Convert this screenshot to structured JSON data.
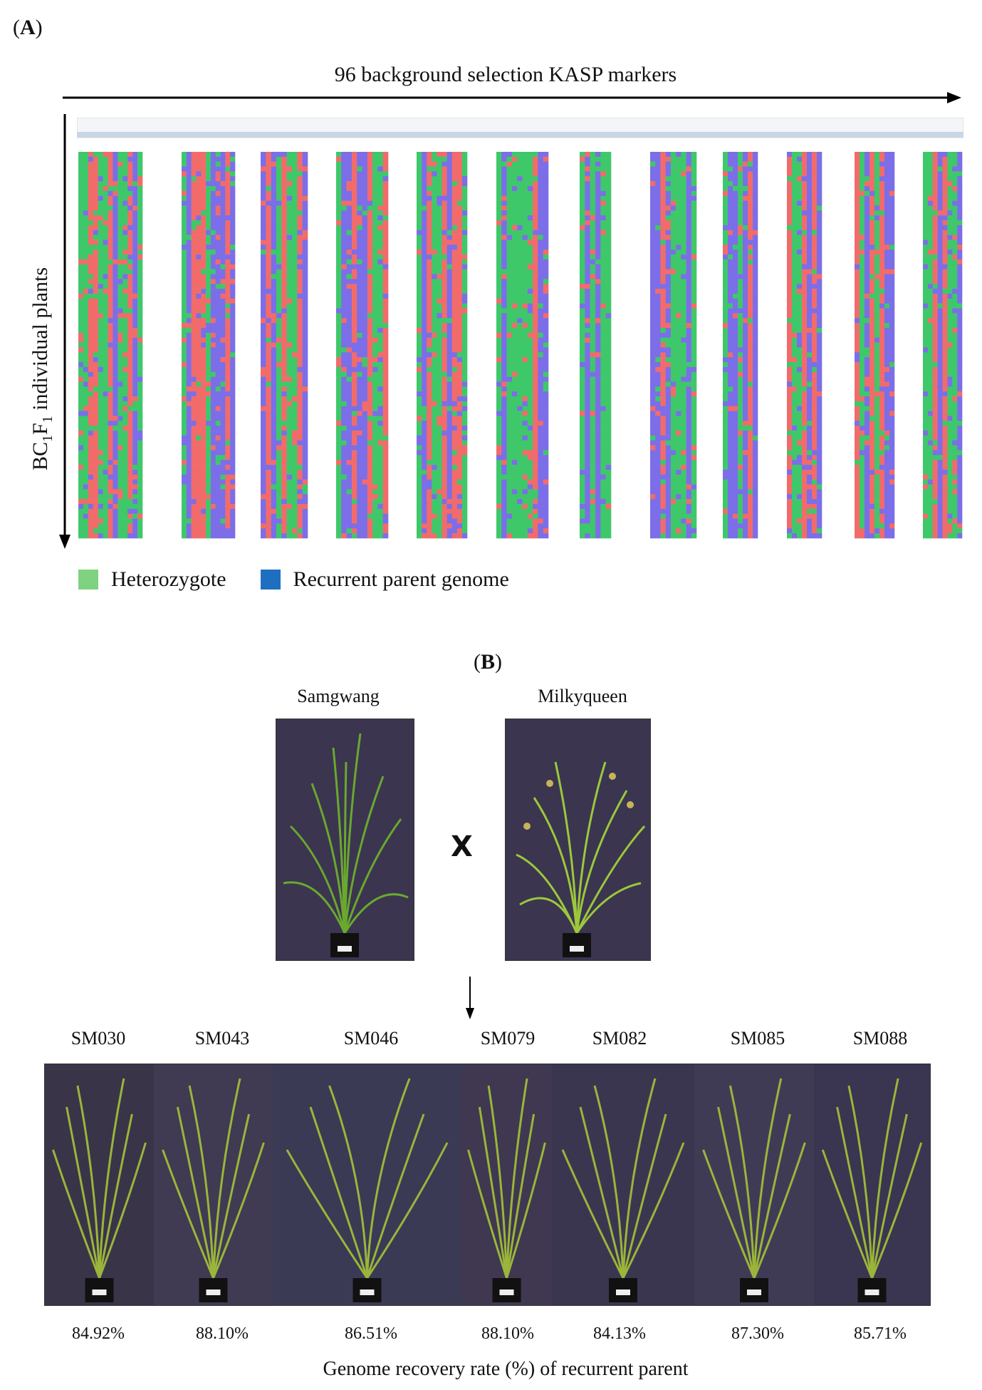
{
  "panel_a": {
    "label_open": "(",
    "label_letter": "A",
    "label_close": ")",
    "title": "96 background selection KASP markers",
    "ylabel_main": "BC",
    "ylabel_sub1": "1",
    "ylabel_mid": "F",
    "ylabel_sub2": "1",
    "ylabel_rest": " individual plants",
    "legend": [
      {
        "label": "Heterozygote",
        "color": "#7fd27f"
      },
      {
        "label": "Recurrent parent genome",
        "color": "#1f6fc0"
      }
    ],
    "colors": {
      "red": "#f26b6b",
      "green": "#3ec86a",
      "blue": "#7b6ee8"
    }
  },
  "panel_b": {
    "label_open": "(",
    "label_letter": "B",
    "label_close": ")",
    "parents": [
      {
        "name": "Samgwang"
      },
      {
        "name": "Milkyqueen"
      }
    ],
    "cross_symbol": "X",
    "offspring": [
      {
        "name": "SM030",
        "rate": "84.92%"
      },
      {
        "name": "SM043",
        "rate": "88.10%"
      },
      {
        "name": "SM046",
        "rate": "86.51%"
      },
      {
        "name": "SM079",
        "rate": "88.10%"
      },
      {
        "name": "SM082",
        "rate": "84.13%"
      },
      {
        "name": "SM085",
        "rate": "87.30%"
      },
      {
        "name": "SM088",
        "rate": "85.71%"
      }
    ],
    "caption": "Genome recovery rate (%) of recurrent parent"
  }
}
